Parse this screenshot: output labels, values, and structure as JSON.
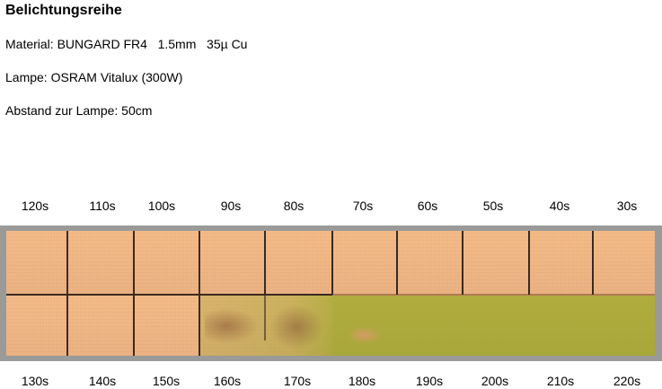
{
  "title": "Belichtungsreihe",
  "material": "Material: BUNGARD FR4   1.5mm   35µ Cu",
  "lampe": "Lampe: OSRAM Vitalux (300W)",
  "abstand": "Abstand zur Lampe: 50cm",
  "top_labels": [
    "120s",
    "110s",
    "100s",
    "90s",
    "80s",
    "70s",
    "60s",
    "50s",
    "40s",
    "30s"
  ],
  "bottom_labels": [
    "130s",
    "140s",
    "150s",
    "160s",
    "170s",
    "180s",
    "190s",
    "200s",
    "210s",
    "220s"
  ],
  "colors": {
    "copper": "#f0b583",
    "resist_green": "#aeac3e",
    "frame": "#9a9a98",
    "grid_line": "#3a2a1e"
  }
}
